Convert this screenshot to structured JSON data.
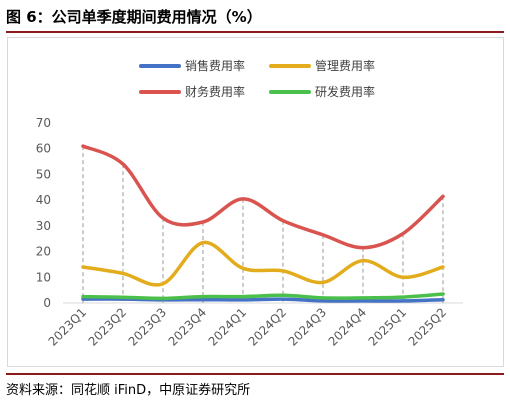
{
  "figure": {
    "title": "图 6：公司单季度期间费用情况（%）",
    "source": "资料来源：同花顺 iFinD，中原证券研究所"
  },
  "chart_data": {
    "type": "line",
    "categories": [
      "2023Q1",
      "2023Q2",
      "2023Q3",
      "2023Q4",
      "2024Q1",
      "2024Q2",
      "2024Q3",
      "2024Q4",
      "2025Q1",
      "2025Q2"
    ],
    "series": [
      {
        "name": "销售费用率",
        "color": "#4472c4",
        "values": [
          1.5,
          1.5,
          1.2,
          1.3,
          1.2,
          1.5,
          0.8,
          0.8,
          0.8,
          1.3
        ]
      },
      {
        "name": "管理费用率",
        "color": "#e3ac1c",
        "values": [
          14.0,
          11.5,
          7.5,
          23.5,
          13.5,
          12.5,
          8.0,
          16.5,
          10.0,
          14.0
        ]
      },
      {
        "name": "财务费用率",
        "color": "#d9534f",
        "values": [
          61.0,
          54.0,
          33.0,
          31.5,
          40.5,
          32.0,
          26.5,
          21.5,
          27.0,
          41.5
        ]
      },
      {
        "name": "研发费用率",
        "color": "#4bbf4b",
        "values": [
          2.5,
          2.2,
          1.8,
          2.5,
          2.5,
          3.0,
          2.0,
          2.0,
          2.3,
          3.5
        ]
      }
    ],
    "y_ticks": [
      "0",
      "10",
      "20",
      "30",
      "40",
      "50",
      "60",
      "70"
    ],
    "ylim": [
      0,
      70
    ],
    "grid": false,
    "drop_lines": true,
    "smooth": true,
    "legend_position": "top-center"
  }
}
